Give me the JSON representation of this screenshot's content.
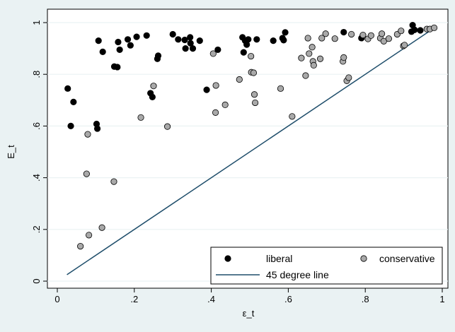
{
  "chart_data": {
    "type": "scatter",
    "xlabel": "ε_t",
    "ylabel": "E_t",
    "xlim": [
      0,
      1
    ],
    "ylim": [
      0,
      1
    ],
    "x_ticks": [
      0,
      0.2,
      0.4,
      0.6,
      0.8,
      1
    ],
    "y_ticks": [
      0,
      0.2,
      0.4,
      0.6,
      0.8,
      1
    ],
    "x_tick_labels": [
      "0",
      ".2",
      ".4",
      ".6",
      ".8",
      "1"
    ],
    "y_tick_labels": [
      "0",
      ".2",
      ".4",
      ".6",
      ".8",
      "1"
    ],
    "grid": "horizontal",
    "legend_position": "bottom-right",
    "colors": {
      "background": "#eaf2f3",
      "plot_area": "#ffffff",
      "liberal": "#000000",
      "conservative": "#a9a9a9",
      "line": "#1f4e6b"
    },
    "series": [
      {
        "name": "liberal",
        "marker": "black-circle",
        "points": [
          [
            0.027,
            0.745
          ],
          [
            0.035,
            0.6
          ],
          [
            0.042,
            0.693
          ],
          [
            0.102,
            0.608
          ],
          [
            0.104,
            0.59
          ],
          [
            0.107,
            0.93
          ],
          [
            0.118,
            0.887
          ],
          [
            0.148,
            0.83
          ],
          [
            0.156,
            0.828
          ],
          [
            0.158,
            0.925
          ],
          [
            0.162,
            0.895
          ],
          [
            0.183,
            0.935
          ],
          [
            0.19,
            0.912
          ],
          [
            0.206,
            0.945
          ],
          [
            0.232,
            0.95
          ],
          [
            0.242,
            0.727
          ],
          [
            0.247,
            0.712
          ],
          [
            0.26,
            0.86
          ],
          [
            0.262,
            0.872
          ],
          [
            0.3,
            0.955
          ],
          [
            0.314,
            0.935
          ],
          [
            0.331,
            0.933
          ],
          [
            0.333,
            0.9
          ],
          [
            0.345,
            0.943
          ],
          [
            0.346,
            0.92
          ],
          [
            0.352,
            0.9
          ],
          [
            0.37,
            0.93
          ],
          [
            0.388,
            0.74
          ],
          [
            0.417,
            0.895
          ],
          [
            0.481,
            0.943
          ],
          [
            0.484,
            0.885
          ],
          [
            0.488,
            0.93
          ],
          [
            0.492,
            0.915
          ],
          [
            0.496,
            0.935
          ],
          [
            0.518,
            0.935
          ],
          [
            0.561,
            0.93
          ],
          [
            0.585,
            0.94
          ],
          [
            0.588,
            0.932
          ],
          [
            0.592,
            0.962
          ],
          [
            0.744,
            0.963
          ],
          [
            0.79,
            0.94
          ],
          [
            0.92,
            0.965
          ],
          [
            0.923,
            0.99
          ],
          [
            0.928,
            0.972
          ],
          [
            0.943,
            0.97
          ]
        ]
      },
      {
        "name": "conservative",
        "marker": "gray-circle",
        "points": [
          [
            0.06,
            0.135
          ],
          [
            0.076,
            0.415
          ],
          [
            0.079,
            0.568
          ],
          [
            0.082,
            0.178
          ],
          [
            0.116,
            0.207
          ],
          [
            0.147,
            0.385
          ],
          [
            0.217,
            0.633
          ],
          [
            0.25,
            0.755
          ],
          [
            0.286,
            0.598
          ],
          [
            0.405,
            0.88
          ],
          [
            0.411,
            0.652
          ],
          [
            0.412,
            0.757
          ],
          [
            0.436,
            0.682
          ],
          [
            0.473,
            0.78
          ],
          [
            0.503,
            0.87
          ],
          [
            0.504,
            0.808
          ],
          [
            0.51,
            0.806
          ],
          [
            0.512,
            0.722
          ],
          [
            0.514,
            0.69
          ],
          [
            0.58,
            0.745
          ],
          [
            0.61,
            0.637
          ],
          [
            0.634,
            0.863
          ],
          [
            0.645,
            0.795
          ],
          [
            0.651,
            0.94
          ],
          [
            0.654,
            0.88
          ],
          [
            0.662,
            0.905
          ],
          [
            0.664,
            0.85
          ],
          [
            0.666,
            0.835
          ],
          [
            0.683,
            0.86
          ],
          [
            0.687,
            0.94
          ],
          [
            0.697,
            0.957
          ],
          [
            0.721,
            0.938
          ],
          [
            0.742,
            0.85
          ],
          [
            0.744,
            0.865
          ],
          [
            0.752,
            0.775
          ],
          [
            0.757,
            0.787
          ],
          [
            0.764,
            0.955
          ],
          [
            0.794,
            0.952
          ],
          [
            0.807,
            0.937
          ],
          [
            0.815,
            0.95
          ],
          [
            0.839,
            0.94
          ],
          [
            0.843,
            0.957
          ],
          [
            0.848,
            0.928
          ],
          [
            0.861,
            0.938
          ],
          [
            0.883,
            0.955
          ],
          [
            0.893,
            0.968
          ],
          [
            0.899,
            0.91
          ],
          [
            0.902,
            0.913
          ],
          [
            0.96,
            0.975
          ],
          [
            0.968,
            0.975
          ],
          [
            0.979,
            0.98
          ]
        ]
      },
      {
        "name": "45 degree line",
        "type": "line",
        "points": [
          [
            0.025,
            0.025
          ],
          [
            0.975,
            0.975
          ]
        ]
      }
    ]
  }
}
